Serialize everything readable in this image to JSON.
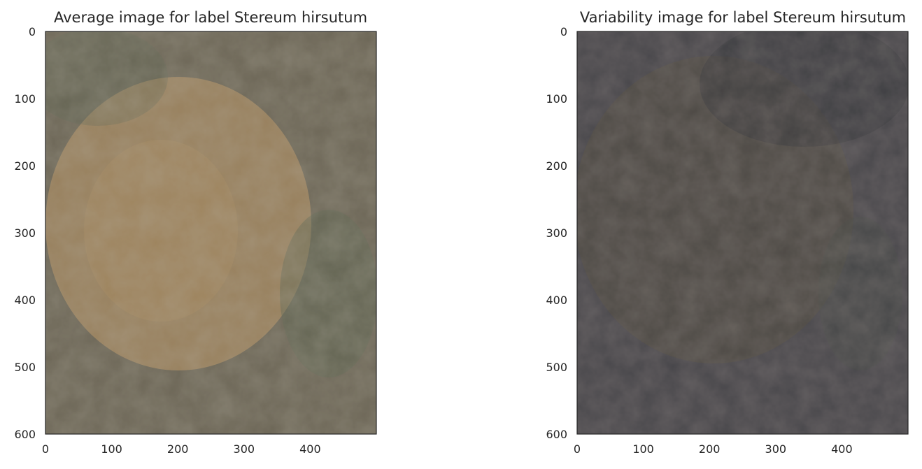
{
  "chart_data": [
    {
      "type": "image",
      "title": "Average image for label Stereum hirsutum",
      "xlim": [
        0,
        500
      ],
      "ylim": [
        600,
        0
      ],
      "xticks": [
        0,
        100,
        200,
        300,
        400
      ],
      "yticks": [
        0,
        100,
        200,
        300,
        400,
        500,
        600
      ],
      "palette": {
        "base": "#6b6555",
        "center": "#a78a60",
        "dark": "#4d4b3e",
        "greenish": "#5e6653"
      }
    },
    {
      "type": "image",
      "title": "Variability image for label Stereum hirsutum",
      "xlim": [
        0,
        500
      ],
      "ylim": [
        600,
        0
      ],
      "xticks": [
        0,
        100,
        200,
        300,
        400
      ],
      "yticks": [
        0,
        100,
        200,
        300,
        400,
        500,
        600
      ],
      "palette": {
        "base": "#47464a",
        "center": "#524b42",
        "dark": "#38383c",
        "greenish": "#464a44"
      }
    }
  ]
}
